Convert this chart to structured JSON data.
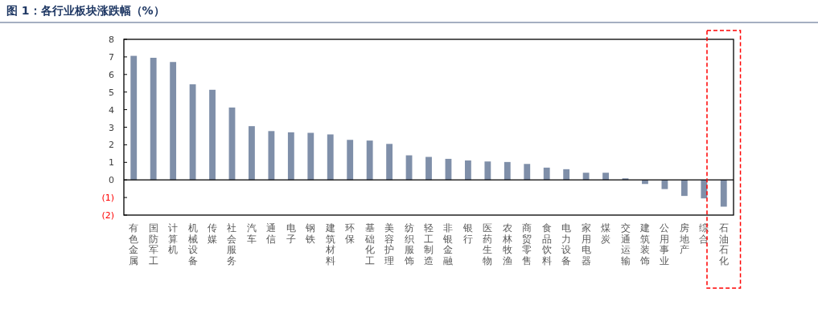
{
  "chart_data": {
    "type": "bar",
    "title": "图 1：各行业板块涨跌幅（%）",
    "categories": [
      "有色金属",
      "国防军工",
      "计算机",
      "机械设备",
      "传媒",
      "社会服务",
      "汽车",
      "通信",
      "电子",
      "钢铁",
      "建筑材料",
      "环保",
      "基础化工",
      "美容护理",
      "纺织服饰",
      "轻工制造",
      "非银金融",
      "银行",
      "医药生物",
      "农林牧渔",
      "商贸零售",
      "食品饮料",
      "电力设备",
      "家用电器",
      "煤炭",
      "交通运输",
      "建筑装饰",
      "公用事业",
      "房地产",
      "综合",
      "石油石化"
    ],
    "values": [
      7.06,
      6.95,
      6.71,
      5.44,
      5.13,
      4.12,
      3.06,
      2.78,
      2.71,
      2.68,
      2.59,
      2.28,
      2.24,
      2.05,
      1.4,
      1.31,
      1.2,
      1.11,
      1.05,
      1.02,
      0.91,
      0.7,
      0.61,
      0.41,
      0.41,
      0.09,
      -0.23,
      -0.52,
      -0.91,
      -1.05,
      -1.52
    ],
    "color": "#7f8fa9",
    "ylim": [
      -2,
      8
    ],
    "yticks": [
      {
        "value": -2,
        "label": "(2)"
      },
      {
        "value": -1,
        "label": "(1)"
      },
      0,
      1,
      2,
      3,
      4,
      5,
      6,
      7,
      8
    ]
  }
}
